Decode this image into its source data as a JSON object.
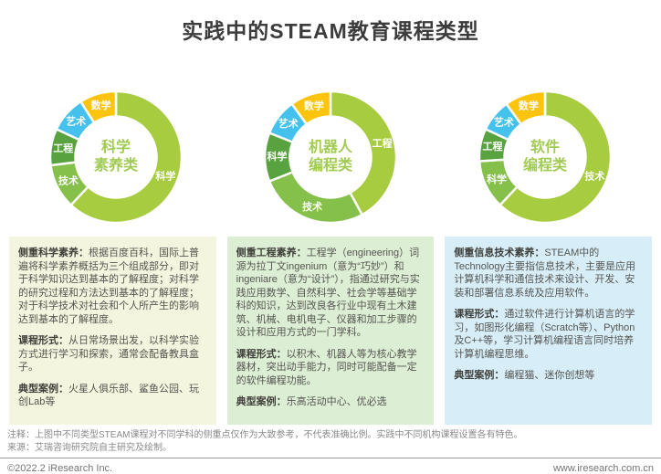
{
  "title": "实践中的STEAM教育课程类型",
  "palette": {
    "segment_main": "#a7cc3f",
    "segment_green2": "#85c04b",
    "segment_green3": "#58a33f",
    "segment_cyan": "#44c1ec",
    "segment_yellow": "#fcc40d",
    "center_label_green": "#a2cb55"
  },
  "chart_data": [
    {
      "type": "pie",
      "title": "科学素养类",
      "center_label_lines": [
        "科学",
        "素养类"
      ],
      "legend_position": "on-slice",
      "segments": [
        {
          "label": "科学",
          "value": 62,
          "color": "#a7cc3f"
        },
        {
          "label": "技术",
          "value": 11,
          "color": "#85c04b"
        },
        {
          "label": "工程",
          "value": 9,
          "color": "#58a33f"
        },
        {
          "label": "艺术",
          "value": 9,
          "color": "#44c1ec"
        },
        {
          "label": "数学",
          "value": 9,
          "color": "#fcc40d"
        }
      ]
    },
    {
      "type": "pie",
      "title": "机器人编程类",
      "center_label_lines": [
        "机器人",
        "编程类"
      ],
      "legend_position": "on-slice",
      "segments": [
        {
          "label": "工程",
          "value": 42,
          "color": "#a7cc3f"
        },
        {
          "label": "技术",
          "value": 27,
          "color": "#85c04b"
        },
        {
          "label": "科学",
          "value": 12,
          "color": "#58a33f"
        },
        {
          "label": "艺术",
          "value": 9,
          "color": "#44c1ec"
        },
        {
          "label": "数学",
          "value": 10,
          "color": "#fcc40d"
        }
      ]
    },
    {
      "type": "pie",
      "title": "软件编程类",
      "center_label_lines": [
        "软件",
        "编程类"
      ],
      "legend_position": "on-slice",
      "segments": [
        {
          "label": "技术",
          "value": 62,
          "color": "#a7cc3f"
        },
        {
          "label": "科学",
          "value": 12,
          "color": "#85c04b"
        },
        {
          "label": "工程",
          "value": 8,
          "color": "#58a33f"
        },
        {
          "label": "艺术",
          "value": 8,
          "color": "#44c1ec"
        },
        {
          "label": "数学",
          "value": 10,
          "color": "#fcc40d"
        }
      ]
    }
  ],
  "info_boxes": [
    {
      "bg": "#f4f5de",
      "paragraphs": [
        {
          "label": "侧重科学素养：",
          "text": "根据百度百科，国际上普遍将科学素养概括为三个组成部分，即对于科学知识达到基本的了解程度；对科学的研究过程和方法达到基本的了解程度；对于科学技术对社会和个人所产生的影响达到基本的了解程度。"
        },
        {
          "label": "课程形式：",
          "text": "从日常场景出发，以科学实验方式进行学习和探索，通常会配备教具盒子。"
        },
        {
          "label": "典型案例：",
          "text": "火星人俱乐部、鲨鱼公园、玩创Lab等"
        }
      ]
    },
    {
      "bg": "#dceed4",
      "paragraphs": [
        {
          "label": "侧重工程素养：",
          "text": "工程学（engineering）词源为拉丁文ingenium（意为“巧妙”）和ingeniare（意为“设计”），指通过研究与实践应用数学、自然科学、社会学等基础学科的知识，达到改良各行业中现有土木建筑、机械、电机电子、仪器和加工步骤的设计和应用方式的一门学科。"
        },
        {
          "label": "课程形式：",
          "text": "以积木、机器人等为核心教学器材，突出动手能力，同时可能配备一定的软件编程功能。"
        },
        {
          "label": "典型案例：",
          "text": "乐高活动中心、优必选"
        }
      ]
    },
    {
      "bg": "#d7eef9",
      "paragraphs": [
        {
          "label": "侧重信息技术素养：",
          "text": "STEAM中的Technology主要指信息技术，主要是应用计算机科学和通信技术来设计、开发、安装和部署信息系统及应用软件。"
        },
        {
          "label": "课程形式：",
          "text": "通过软件进行计算机语言的学习，如图形化编程（Scratch等）、Python及C++等，学习计算机编程语言同时培养计算机编程思维。"
        },
        {
          "label": "典型案例：",
          "text": "编程猫、迷你创想等"
        }
      ]
    }
  ],
  "footer": {
    "note": "注释：上图中不同类型STEAM课程对不同学科的侧重点仅作为大致参考，不代表准确比例。实践中不同机构课程设置各有特色。",
    "source": "来源：艾瑞咨询研究院自主研究及绘制。",
    "copyright": "©2022.2 iResearch Inc.",
    "website": "www.iresearch.com.cn"
  }
}
